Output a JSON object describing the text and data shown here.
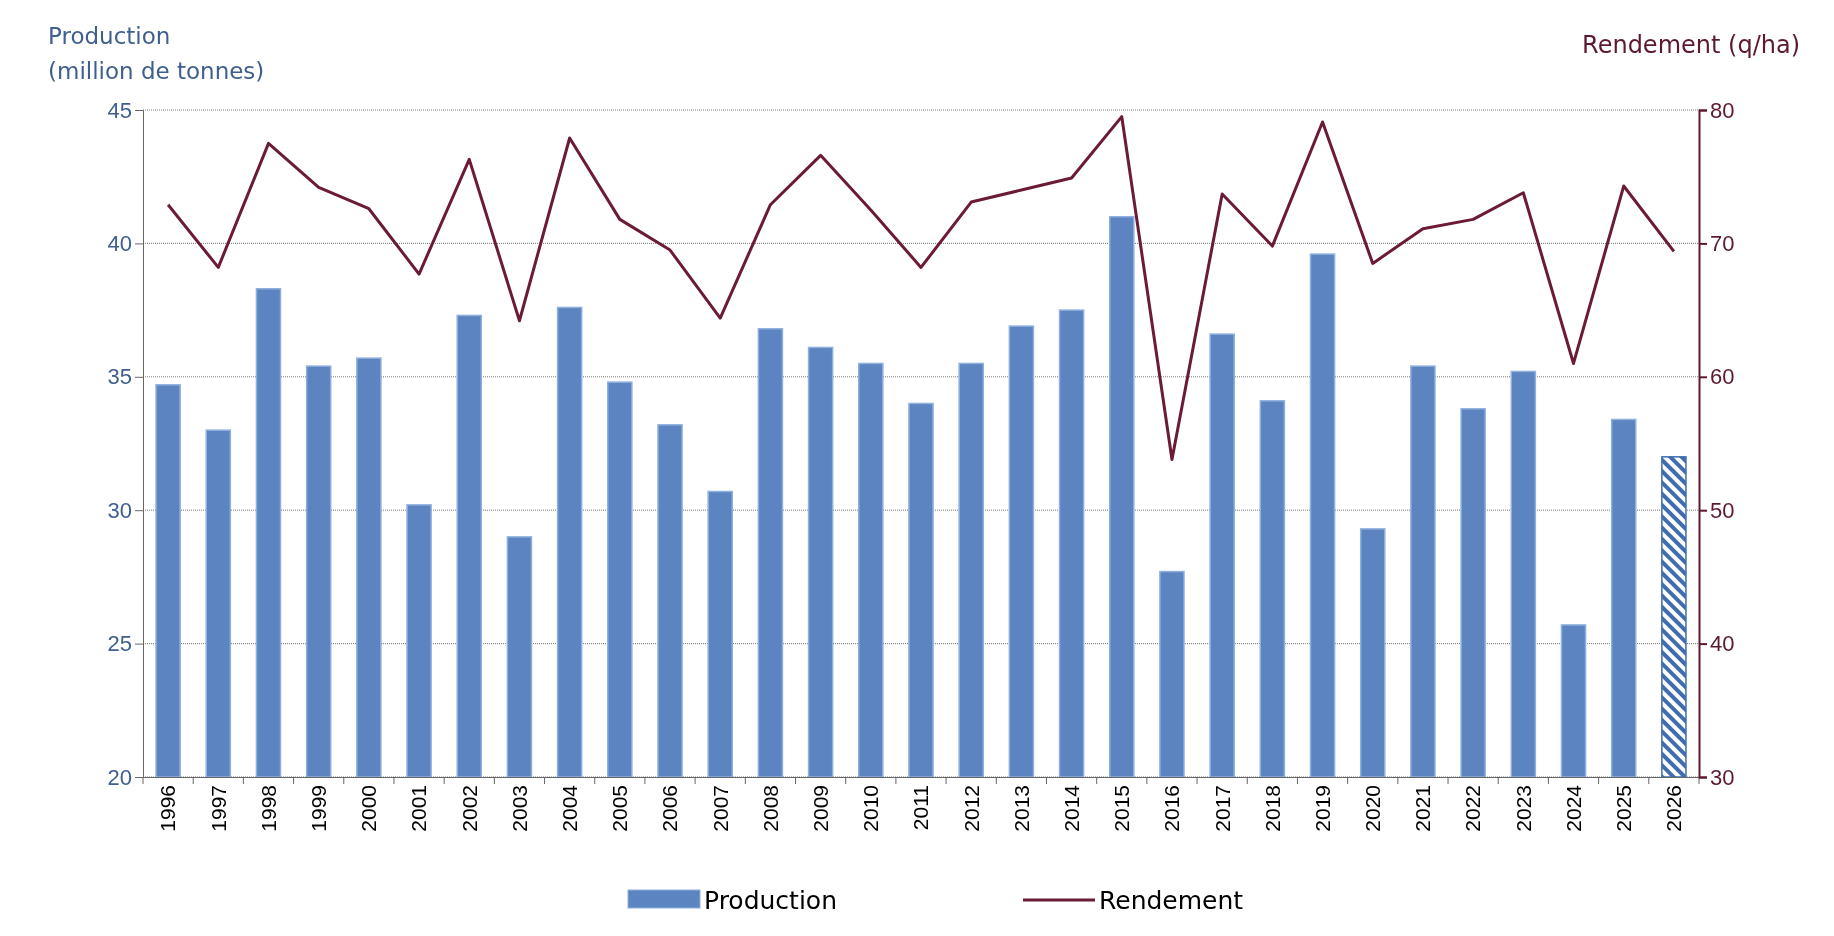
{
  "chart_data": {
    "type": "bar",
    "ylabel": "Production\n(million de tonnes)",
    "y2label": "Rendement (q/ha)",
    "categories": [
      "1996",
      "1997",
      "1998",
      "1999",
      "2000",
      "2001",
      "2002",
      "2003",
      "2004",
      "2005",
      "2006",
      "2007",
      "2008",
      "2009",
      "2010",
      "2011",
      "2012",
      "2013",
      "2014",
      "2015",
      "2016",
      "2017",
      "2018",
      "2019",
      "2020",
      "2021",
      "2022",
      "2023",
      "2024",
      "2025",
      "2026"
    ],
    "series": [
      {
        "name": "Production",
        "color": "#5b84c0",
        "colors": [
          "#5b84c0",
          "#5b84c0",
          "#5b84c0",
          "#5b84c0",
          "#5b84c0",
          "#5b84c0",
          "#5b84c0",
          "#5b84c0",
          "#5b84c0",
          "#5b84c0",
          "#5b84c0",
          "#5b84c0",
          "#5b84c0",
          "#5b84c0",
          "#5b84c0",
          "#5b84c0",
          "#5b84c0",
          "#5b84c0",
          "#5b84c0",
          "#5b84c0",
          "#5b84c0",
          "#5b84c0",
          "#5b84c0",
          "#5b84c0",
          "#5b84c0",
          "#5b84c0",
          "#5b84c0",
          "#5b84c0",
          "#5b84c0",
          "#5b84c0",
          "#3f6db0"
        ],
        "values": [
          34.7,
          33.0,
          38.3,
          35.4,
          35.7,
          30.2,
          37.3,
          29.0,
          37.6,
          34.8,
          33.2,
          30.7,
          36.8,
          36.1,
          35.5,
          34.0,
          35.5,
          36.9,
          37.5,
          41.0,
          27.7,
          36.6,
          34.1,
          39.6,
          29.3,
          35.4,
          33.8,
          35.2,
          25.7,
          33.4,
          32.0
        ]
      },
      {
        "name": "Rendement",
        "type": "line",
        "axis": "y2",
        "color": "#6b1b35",
        "values": [
          72.9,
          68.2,
          77.5,
          74.2,
          72.6,
          67.7,
          76.3,
          64.2,
          77.9,
          71.8,
          69.5,
          64.4,
          72.9,
          76.6,
          72.5,
          68.2,
          73.1,
          74.0,
          74.9,
          79.5,
          53.8,
          73.7,
          69.8,
          79.1,
          68.5,
          71.1,
          71.8,
          73.8,
          61.0,
          74.3,
          69.4
        ]
      }
    ],
    "ylim": [
      20,
      45
    ],
    "yticks": [
      20,
      25,
      30,
      35,
      40,
      45
    ],
    "y2lim": [
      30,
      80
    ],
    "y2ticks": [
      30,
      40,
      50,
      60,
      70,
      80
    ],
    "grid": "y",
    "legend": "bottom",
    "marker": "none",
    "line_style": "solid"
  }
}
